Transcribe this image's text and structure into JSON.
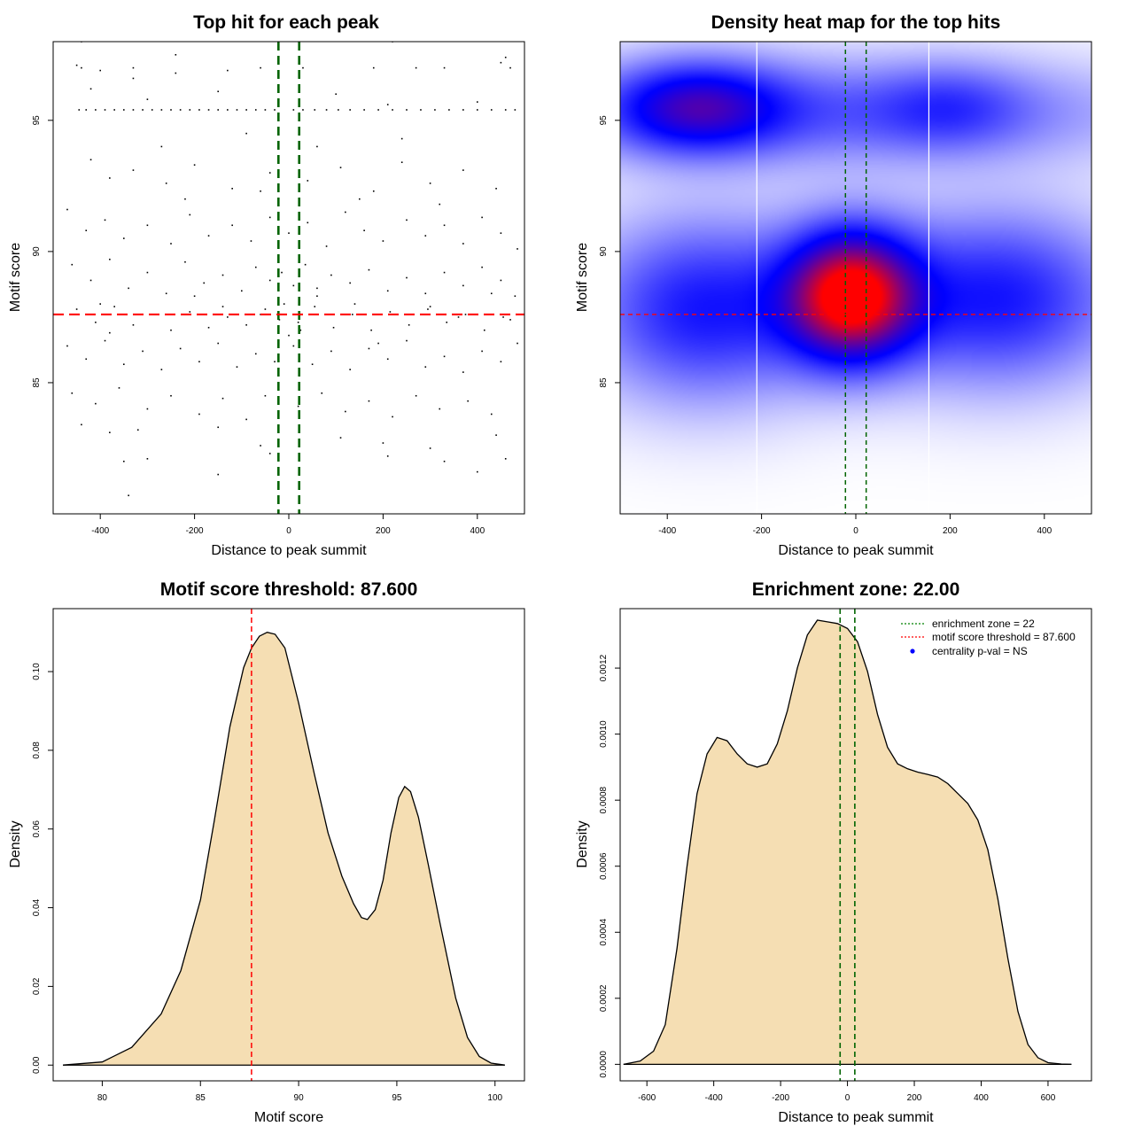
{
  "chart_data": [
    {
      "id": "p1",
      "type": "scatter",
      "title": "Top hit for each peak",
      "xlabel": "Distance to peak summit",
      "ylabel": "Motif score",
      "xlim": [
        -500,
        500
      ],
      "ylim": [
        80,
        98
      ],
      "xticks": [
        -400,
        -200,
        0,
        200,
        400
      ],
      "xtick_labels": [
        "-400",
        "-200",
        "0",
        "200",
        "400"
      ],
      "yticks": [
        85,
        90,
        95
      ],
      "ytick_labels": [
        "85",
        "90",
        "95"
      ],
      "vlines": [
        -22,
        22
      ],
      "hline": 87.6,
      "colors": {
        "points": "#000000",
        "vlines": "#006400",
        "hline": "#ff0000"
      },
      "points": [
        [
          -445,
          95.4
        ],
        [
          -430,
          95.4
        ],
        [
          -410,
          95.4
        ],
        [
          -390,
          95.4
        ],
        [
          -370,
          95.4
        ],
        [
          -350,
          95.4
        ],
        [
          -330,
          95.4
        ],
        [
          -310,
          95.4
        ],
        [
          -290,
          95.4
        ],
        [
          -270,
          95.4
        ],
        [
          -250,
          95.4
        ],
        [
          -230,
          95.4
        ],
        [
          -210,
          95.4
        ],
        [
          -190,
          95.4
        ],
        [
          -170,
          95.4
        ],
        [
          -150,
          95.4
        ],
        [
          -130,
          95.4
        ],
        [
          -110,
          95.4
        ],
        [
          -90,
          95.4
        ],
        [
          -70,
          95.4
        ],
        [
          -50,
          95.4
        ],
        [
          -30,
          95.4
        ],
        [
          10,
          95.4
        ],
        [
          30,
          95.4
        ],
        [
          55,
          95.4
        ],
        [
          80,
          95.4
        ],
        [
          105,
          95.4
        ],
        [
          130,
          95.4
        ],
        [
          160,
          95.4
        ],
        [
          190,
          95.4
        ],
        [
          220,
          95.4
        ],
        [
          250,
          95.4
        ],
        [
          280,
          95.4
        ],
        [
          310,
          95.4
        ],
        [
          340,
          95.4
        ],
        [
          370,
          95.4
        ],
        [
          400,
          95.4
        ],
        [
          430,
          95.4
        ],
        [
          460,
          95.4
        ],
        [
          480,
          95.4
        ],
        [
          -440,
          97.0
        ],
        [
          -400,
          96.9
        ],
        [
          -330,
          97.0
        ],
        [
          -240,
          96.8
        ],
        [
          -130,
          96.9
        ],
        [
          -60,
          97.0
        ],
        [
          30,
          97.0
        ],
        [
          180,
          97.0
        ],
        [
          270,
          97.0
        ],
        [
          330,
          97.0
        ],
        [
          450,
          97.2
        ],
        [
          470,
          97.0
        ],
        [
          -420,
          96.2
        ],
        [
          -300,
          95.8
        ],
        [
          -150,
          96.1
        ],
        [
          100,
          96.0
        ],
        [
          210,
          95.6
        ],
        [
          400,
          95.7
        ],
        [
          -420,
          93.5
        ],
        [
          -380,
          92.8
        ],
        [
          -330,
          93.1
        ],
        [
          -260,
          92.6
        ],
        [
          -200,
          93.3
        ],
        [
          -120,
          92.4
        ],
        [
          -40,
          93.0
        ],
        [
          40,
          92.7
        ],
        [
          110,
          93.2
        ],
        [
          180,
          92.3
        ],
        [
          240,
          93.4
        ],
        [
          300,
          92.6
        ],
        [
          370,
          93.1
        ],
        [
          440,
          92.4
        ],
        [
          -470,
          91.6
        ],
        [
          -430,
          90.8
        ],
        [
          -390,
          91.2
        ],
        [
          -350,
          90.5
        ],
        [
          -300,
          91.0
        ],
        [
          -250,
          90.3
        ],
        [
          -210,
          91.4
        ],
        [
          -170,
          90.6
        ],
        [
          -120,
          91.0
        ],
        [
          -80,
          90.4
        ],
        [
          -40,
          91.3
        ],
        [
          0,
          90.7
        ],
        [
          40,
          91.1
        ],
        [
          80,
          90.2
        ],
        [
          120,
          91.5
        ],
        [
          160,
          90.8
        ],
        [
          200,
          90.4
        ],
        [
          250,
          91.2
        ],
        [
          290,
          90.6
        ],
        [
          330,
          91.0
        ],
        [
          370,
          90.3
        ],
        [
          410,
          91.3
        ],
        [
          450,
          90.7
        ],
        [
          485,
          90.1
        ],
        [
          -460,
          89.5
        ],
        [
          -420,
          88.9
        ],
        [
          -380,
          89.7
        ],
        [
          -340,
          88.6
        ],
        [
          -300,
          89.2
        ],
        [
          -260,
          88.4
        ],
        [
          -220,
          89.6
        ],
        [
          -180,
          88.8
        ],
        [
          -140,
          89.1
        ],
        [
          -100,
          88.5
        ],
        [
          -70,
          89.4
        ],
        [
          -40,
          88.9
        ],
        [
          -15,
          89.2
        ],
        [
          10,
          88.7
        ],
        [
          35,
          89.5
        ],
        [
          60,
          88.6
        ],
        [
          90,
          89.1
        ],
        [
          130,
          88.8
        ],
        [
          170,
          89.3
        ],
        [
          210,
          88.5
        ],
        [
          250,
          89.0
        ],
        [
          290,
          88.4
        ],
        [
          330,
          89.2
        ],
        [
          370,
          88.7
        ],
        [
          410,
          89.4
        ],
        [
          450,
          88.9
        ],
        [
          480,
          88.3
        ],
        [
          -450,
          87.8
        ],
        [
          -410,
          87.3
        ],
        [
          -370,
          87.9
        ],
        [
          -330,
          87.2
        ],
        [
          -290,
          87.6
        ],
        [
          -250,
          87.0
        ],
        [
          -210,
          87.7
        ],
        [
          -170,
          87.1
        ],
        [
          -130,
          87.5
        ],
        [
          -90,
          87.2
        ],
        [
          -50,
          87.8
        ],
        [
          -20,
          87.4
        ],
        [
          20,
          87.3
        ],
        [
          55,
          87.9
        ],
        [
          95,
          87.1
        ],
        [
          135,
          87.6
        ],
        [
          175,
          87.0
        ],
        [
          215,
          87.7
        ],
        [
          255,
          87.2
        ],
        [
          295,
          87.8
        ],
        [
          335,
          87.3
        ],
        [
          375,
          87.6
        ],
        [
          415,
          87.0
        ],
        [
          455,
          87.5
        ],
        [
          -470,
          86.4
        ],
        [
          -430,
          85.9
        ],
        [
          -390,
          86.6
        ],
        [
          -350,
          85.7
        ],
        [
          -310,
          86.2
        ],
        [
          -270,
          85.5
        ],
        [
          -230,
          86.3
        ],
        [
          -190,
          85.8
        ],
        [
          -150,
          86.5
        ],
        [
          -110,
          85.6
        ],
        [
          -70,
          86.1
        ],
        [
          -30,
          85.8
        ],
        [
          10,
          86.4
        ],
        [
          50,
          85.7
        ],
        [
          90,
          86.2
        ],
        [
          130,
          85.5
        ],
        [
          170,
          86.3
        ],
        [
          210,
          85.9
        ],
        [
          250,
          86.6
        ],
        [
          290,
          85.6
        ],
        [
          330,
          86.0
        ],
        [
          370,
          85.4
        ],
        [
          410,
          86.2
        ],
        [
          450,
          85.8
        ],
        [
          485,
          86.5
        ],
        [
          -460,
          84.6
        ],
        [
          -410,
          84.2
        ],
        [
          -360,
          84.8
        ],
        [
          -300,
          84.0
        ],
        [
          -250,
          84.5
        ],
        [
          -190,
          83.8
        ],
        [
          -140,
          84.4
        ],
        [
          -90,
          83.6
        ],
        [
          -50,
          84.5
        ],
        [
          20,
          84.1
        ],
        [
          70,
          84.6
        ],
        [
          120,
          83.9
        ],
        [
          170,
          84.3
        ],
        [
          220,
          83.7
        ],
        [
          270,
          84.5
        ],
        [
          320,
          84.0
        ],
        [
          380,
          84.3
        ],
        [
          430,
          83.8
        ],
        [
          -440,
          83.4
        ],
        [
          -380,
          83.1
        ],
        [
          -320,
          83.2
        ],
        [
          -150,
          83.3
        ],
        [
          -60,
          82.6
        ],
        [
          -40,
          82.3
        ],
        [
          110,
          82.9
        ],
        [
          200,
          82.7
        ],
        [
          300,
          82.5
        ],
        [
          440,
          83.0
        ],
        [
          -350,
          82.0
        ],
        [
          -300,
          82.1
        ],
        [
          -150,
          81.5
        ],
        [
          210,
          82.2
        ],
        [
          330,
          82.0
        ],
        [
          400,
          81.6
        ],
        [
          460,
          82.1
        ],
        [
          -340,
          80.7
        ],
        [
          -450,
          97.1
        ],
        [
          -330,
          96.6
        ],
        [
          -240,
          97.5
        ],
        [
          220,
          98.0
        ],
        [
          -440,
          98.0
        ],
        [
          460,
          97.4
        ],
        [
          -270,
          94.0
        ],
        [
          -90,
          94.5
        ],
        [
          60,
          94.0
        ],
        [
          240,
          94.3
        ],
        [
          -220,
          92.0
        ],
        [
          -60,
          92.3
        ],
        [
          150,
          92.0
        ],
        [
          320,
          91.8
        ],
        [
          -400,
          88.0
        ],
        [
          -380,
          86.9
        ],
        [
          -200,
          88.3
        ],
        [
          -140,
          87.9
        ],
        [
          -60,
          87.6
        ],
        [
          -10,
          88.0
        ],
        [
          0,
          86.8
        ],
        [
          25,
          87.0
        ],
        [
          60,
          88.3
        ],
        [
          140,
          88.0
        ],
        [
          190,
          86.5
        ],
        [
          300,
          87.9
        ],
        [
          360,
          87.5
        ],
        [
          430,
          88.4
        ],
        [
          470,
          87.4
        ]
      ]
    },
    {
      "id": "p2",
      "type": "heatmap",
      "title": "Density heat map for the top hits",
      "xlabel": "Distance to peak summit",
      "ylabel": "Motif score",
      "xlim": [
        -500,
        500
      ],
      "ylim": [
        80,
        98
      ],
      "xticks": [
        -400,
        -200,
        0,
        200,
        400
      ],
      "xtick_labels": [
        "-400",
        "-200",
        "0",
        "200",
        "400"
      ],
      "yticks": [
        85,
        90,
        95
      ],
      "ytick_labels": [
        "85",
        "90",
        "95"
      ],
      "vlines": [
        -22,
        22
      ],
      "hline": 87.6,
      "white_vlines": [
        -210,
        155
      ],
      "colors": {
        "low": "#ffffff",
        "mid": "#0000ff",
        "high": "#ff0000",
        "vlines": "#006400",
        "hline": "#ff0000"
      },
      "components": [
        {
          "x": -340,
          "y": 95.5,
          "sx": 130,
          "sy": 1.2,
          "w": 1.05
        },
        {
          "x": -10,
          "y": 88.3,
          "sx": 95,
          "sy": 1.7,
          "w": 2.2
        },
        {
          "x": 300,
          "y": 88.2,
          "sx": 180,
          "sy": 2.2,
          "w": 0.9
        },
        {
          "x": -320,
          "y": 87.8,
          "sx": 170,
          "sy": 2.3,
          "w": 0.9
        },
        {
          "x": 0,
          "y": 95.3,
          "sx": 420,
          "sy": 1.4,
          "w": 0.55
        },
        {
          "x": 200,
          "y": 95.5,
          "sx": 110,
          "sy": 1.1,
          "w": 0.35
        }
      ]
    },
    {
      "id": "p3",
      "type": "area",
      "title": "Motif score threshold: 87.600",
      "xlabel": "Motif score",
      "ylabel": "Density",
      "xlim": [
        77.5,
        101.5
      ],
      "ylim": [
        -0.004,
        0.116
      ],
      "xticks": [
        80,
        85,
        90,
        95,
        100
      ],
      "xtick_labels": [
        "80",
        "85",
        "90",
        "95",
        "100"
      ],
      "yticks": [
        0,
        0.02,
        0.04,
        0.06,
        0.08,
        0.1
      ],
      "ytick_labels": [
        "0.00",
        "0.02",
        "0.04",
        "0.06",
        "0.08",
        "0.10"
      ],
      "vline": 87.6,
      "colors": {
        "fill": "#f5deb3",
        "line": "#000000",
        "vline": "#ff0000"
      },
      "x": [
        78,
        80,
        81.5,
        83,
        84,
        85,
        85.7,
        86.5,
        87.2,
        87.6,
        88,
        88.4,
        88.8,
        89.3,
        90,
        90.8,
        91.5,
        92.2,
        92.8,
        93.2,
        93.5,
        93.9,
        94.3,
        94.7,
        95.1,
        95.4,
        95.7,
        96.1,
        96.6,
        97.2,
        98,
        98.6,
        99.2,
        99.8,
        100.5
      ],
      "values": [
        0.0,
        0.0008,
        0.0045,
        0.013,
        0.024,
        0.042,
        0.062,
        0.086,
        0.101,
        0.106,
        0.109,
        0.11,
        0.1095,
        0.106,
        0.092,
        0.074,
        0.059,
        0.048,
        0.041,
        0.0375,
        0.037,
        0.0395,
        0.047,
        0.059,
        0.068,
        0.0708,
        0.0695,
        0.063,
        0.051,
        0.036,
        0.017,
        0.007,
        0.0022,
        0.0005,
        0.0
      ]
    },
    {
      "id": "p4",
      "type": "area",
      "title": "Enrichment zone: 22.00",
      "xlabel": "Distance to peak summit",
      "ylabel": "Density",
      "xlim": [
        -680,
        730
      ],
      "ylim": [
        -5e-05,
        0.00138
      ],
      "xticks": [
        -600,
        -400,
        -200,
        0,
        200,
        400,
        600
      ],
      "xtick_labels": [
        "-600",
        "-400",
        "-200",
        "0",
        "200",
        "400",
        "600"
      ],
      "yticks": [
        0,
        0.0002,
        0.0004,
        0.0006,
        0.0008,
        0.001,
        0.0012
      ],
      "ytick_labels": [
        "0.0000",
        "0.0002",
        "0.0004",
        "0.0006",
        "0.0008",
        "0.0010",
        "0.0012"
      ],
      "vlines": [
        -22,
        22
      ],
      "colors": {
        "fill": "#f5deb3",
        "line": "#000000",
        "vlines": "#006400",
        "leg_zone": "#008000",
        "leg_thresh": "#ff0000",
        "leg_pval": "#0000ff"
      },
      "x": [
        -670,
        -620,
        -580,
        -545,
        -510,
        -480,
        -450,
        -420,
        -390,
        -360,
        -330,
        -300,
        -270,
        -240,
        -210,
        -180,
        -150,
        -120,
        -90,
        -60,
        -30,
        0,
        30,
        60,
        90,
        120,
        150,
        180,
        210,
        240,
        270,
        300,
        330,
        360,
        390,
        420,
        450,
        480,
        510,
        540,
        570,
        600,
        640,
        670
      ],
      "values": [
        0.0,
        1e-05,
        4e-05,
        0.00012,
        0.00035,
        0.0006,
        0.00082,
        0.00094,
        0.00099,
        0.00098,
        0.00094,
        0.00091,
        0.0009,
        0.00091,
        0.00097,
        0.00107,
        0.0012,
        0.0013,
        0.001345,
        0.00134,
        0.001335,
        0.00132,
        0.00128,
        0.00119,
        0.00106,
        0.00096,
        0.00091,
        0.000895,
        0.000885,
        0.000878,
        0.00087,
        0.00085,
        0.00082,
        0.00079,
        0.00074,
        0.00065,
        0.0005,
        0.00032,
        0.00016,
        6e-05,
        2e-05,
        5e-06,
        1e-06,
        0.0
      ],
      "legend": [
        {
          "label": "enrichment zone = 22",
          "style": "dotted",
          "color": "#008000"
        },
        {
          "label": "motif score threshold = 87.600",
          "style": "dotted",
          "color": "#ff0000"
        },
        {
          "label": "centrality p-val = NS",
          "style": "point",
          "color": "#0000ff"
        }
      ]
    }
  ]
}
